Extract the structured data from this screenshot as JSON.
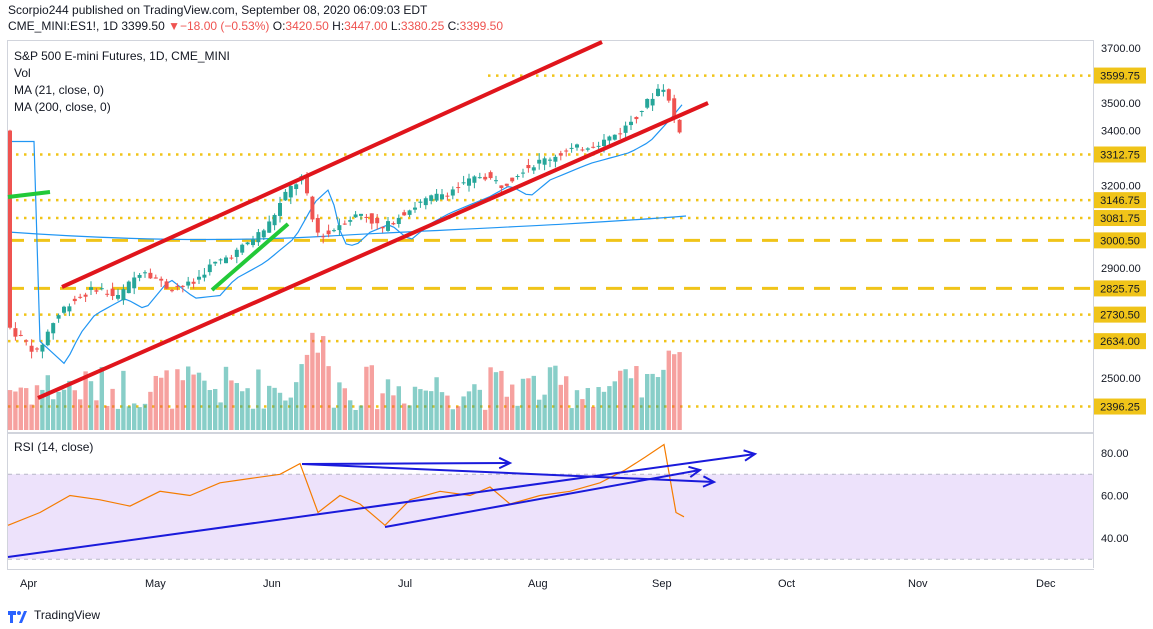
{
  "header": {
    "publisher_line": "Scorpio244 published on TradingView.com, September 08, 2020 06:09:03 EDT",
    "symbol": "CME_MINI:ES1!, 1D",
    "last": "3399.50",
    "change": "−18.00 (−0.53%)",
    "open_label": "O:",
    "open": "3420.50",
    "high_label": "H:",
    "high": "3447.00",
    "low_label": "L:",
    "low": "3380.25",
    "close_label": "C:",
    "close": "3399.50"
  },
  "legend": {
    "title": "S&P 500 E-mini Futures, 1D, CME_MINI",
    "vol": "Vol",
    "ma21": "MA (21, close, 0)",
    "ma200": "MA (200, close, 0)"
  },
  "rsi_legend": "RSI (14, close)",
  "price_axis": [
    "3700.00",
    "3500.00",
    "3400.00",
    "3200.00",
    "2900.00",
    "2500.00"
  ],
  "level_tags": [
    "3599.75",
    "3312.75",
    "3146.75",
    "3081.75",
    "3000.50",
    "2825.75",
    "2730.50",
    "2634.00",
    "2396.25"
  ],
  "rsi_axis": [
    "80.00",
    "60.00",
    "40.00"
  ],
  "time_axis": [
    "Apr",
    "May",
    "Jun",
    "Jul",
    "Aug",
    "Sep",
    "Oct",
    "Nov",
    "Dec"
  ],
  "footer": {
    "brand": "TradingView"
  },
  "colors": {
    "up": "#26a69a",
    "down": "#ef5350",
    "trend": "#e0151c",
    "level": "#f0c419",
    "ma": "#2196f3",
    "rsi_line": "#f57c00",
    "rsi_band": "#ede2fb",
    "arrow": "#1a1adb",
    "green_line": "#22c938"
  },
  "chart_data": {
    "type": "candlestick",
    "title": "S&P 500 E-mini Futures, 1D, CME_MINI",
    "y_range": [
      2300,
      3750
    ],
    "horizontal_levels": [
      3599.75,
      3312.75,
      3146.75,
      3081.75,
      3000.5,
      2825.75,
      2730.5,
      2634.0,
      2396.25
    ],
    "last_bar": {
      "open": 3420.5,
      "high": 3447.0,
      "low": 3380.25,
      "close": 3399.5
    },
    "rsi_range": [
      30,
      90
    ],
    "rsi_levels": [
      70,
      30
    ]
  }
}
